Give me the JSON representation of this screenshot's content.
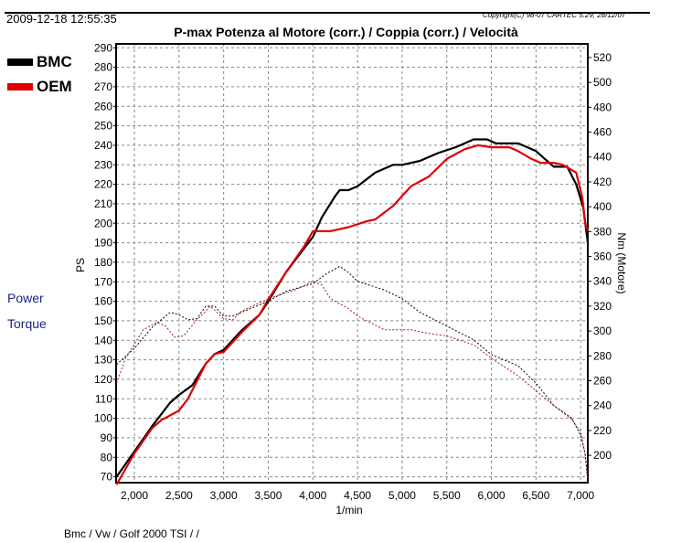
{
  "header": {
    "timestamp": "2009-12-18 12:55:35",
    "copyright": "Copyright(C) 98-07 CARTEC 5.29, 28/12/07"
  },
  "legend": [
    {
      "name": "BMC",
      "color": "#000000"
    },
    {
      "name": "OEM",
      "color": "#e00000"
    }
  ],
  "side_labels": {
    "power": "Power",
    "torque": "Torque"
  },
  "footer": "Bmc / Vw / Golf 2000 TSI /  /",
  "chart_data": {
    "type": "line",
    "title": "P-max Potenza al Motore (corr.) / Coppia (corr.) / Velocità",
    "xlabel": "1/min",
    "ylabel": "PS",
    "y2label": "Nm (Motore)",
    "xlim": [
      1795,
      7080
    ],
    "ylim": [
      67,
      292
    ],
    "y2lim": [
      178,
      531
    ],
    "xticks": [
      2000,
      2500,
      3000,
      3500,
      4000,
      4500,
      5000,
      5500,
      6000,
      6500,
      7000
    ],
    "xtick_labels": [
      "2,000",
      "2,500",
      "3,000",
      "3,500",
      "4,000",
      "4,500",
      "5,000",
      "5,500",
      "6,000",
      "6,500",
      "7,000"
    ],
    "yticks": [
      70,
      80,
      90,
      100,
      110,
      120,
      130,
      140,
      150,
      160,
      170,
      180,
      190,
      200,
      210,
      220,
      230,
      240,
      250,
      260,
      270,
      280,
      290
    ],
    "y2ticks": [
      200,
      220,
      240,
      260,
      280,
      300,
      320,
      340,
      360,
      380,
      400,
      420,
      440,
      460,
      480,
      500,
      520
    ],
    "grid": true,
    "series": [
      {
        "name": "BMC Power",
        "axis": "left",
        "color": "#000000",
        "style": "solid",
        "x": [
          1800,
          2000,
          2200,
          2400,
          2500,
          2650,
          2800,
          2900,
          3000,
          3200,
          3400,
          3500,
          3700,
          3900,
          4000,
          4100,
          4250,
          4300,
          4400,
          4500,
          4700,
          4900,
          5000,
          5200,
          5400,
          5600,
          5800,
          5950,
          6050,
          6300,
          6500,
          6600,
          6700,
          6850,
          6950,
          7030,
          7080
        ],
        "y": [
          70,
          83,
          96,
          108,
          112,
          117,
          128,
          133,
          135,
          145,
          153,
          160,
          175,
          187,
          193,
          203,
          214,
          217,
          217,
          219,
          226,
          230,
          230,
          232,
          236,
          239,
          243,
          243,
          241,
          241,
          237,
          233,
          229,
          229,
          220,
          208,
          190
        ]
      },
      {
        "name": "OEM Power",
        "axis": "left",
        "color": "#e00000",
        "style": "solid",
        "x": [
          1800,
          2000,
          2200,
          2300,
          2500,
          2600,
          2800,
          2900,
          3000,
          3200,
          3400,
          3500,
          3700,
          3900,
          4000,
          4100,
          4200,
          4400,
          4600,
          4700,
          4900,
          5000,
          5100,
          5300,
          5500,
          5700,
          5850,
          6000,
          6200,
          6300,
          6450,
          6550,
          6700,
          6800,
          6950,
          7020,
          7050,
          7080
        ],
        "y": [
          66,
          82,
          95,
          99,
          104,
          110,
          128,
          133,
          134,
          144,
          153,
          161,
          175,
          188,
          196,
          196,
          196,
          198,
          201,
          202,
          209,
          214,
          219,
          224,
          233,
          238,
          240,
          239,
          239,
          237,
          233,
          231,
          231,
          230,
          226,
          213,
          200,
          196
        ]
      },
      {
        "name": "BMC Torque",
        "axis": "right",
        "color": "#000000",
        "style": "dashed",
        "x": [
          1800,
          2000,
          2200,
          2400,
          2500,
          2600,
          2700,
          2800,
          2900,
          3000,
          3100,
          3300,
          3500,
          3700,
          4000,
          4150,
          4300,
          4400,
          4500,
          4800,
          5000,
          5200,
          5500,
          5800,
          6000,
          6300,
          6500,
          6700,
          6900,
          7000,
          7050,
          7080
        ],
        "y": [
          273,
          286,
          303,
          315,
          313,
          309,
          310,
          320,
          320,
          312,
          312,
          318,
          324,
          332,
          338,
          346,
          352,
          347,
          340,
          333,
          326,
          315,
          304,
          293,
          281,
          272,
          258,
          240,
          230,
          216,
          201,
          180
        ]
      },
      {
        "name": "OEM Torque",
        "axis": "right",
        "color": "#a02020",
        "style": "dashed",
        "x": [
          1800,
          1900,
          2100,
          2250,
          2350,
          2450,
          2550,
          2700,
          2800,
          2850,
          3000,
          3100,
          3200,
          3500,
          3800,
          4000,
          4100,
          4200,
          4400,
          4500,
          4800,
          5000,
          5100,
          5300,
          5500,
          5800,
          6000,
          6300,
          6500,
          6700,
          6900,
          7000,
          7050,
          7080
        ],
        "y": [
          258,
          278,
          301,
          307,
          304,
          295,
          296,
          309,
          316,
          320,
          310,
          309,
          316,
          326,
          333,
          340,
          337,
          326,
          318,
          312,
          301,
          301,
          301,
          298,
          296,
          289,
          278,
          264,
          252,
          240,
          229,
          219,
          201,
          180
        ]
      }
    ]
  }
}
